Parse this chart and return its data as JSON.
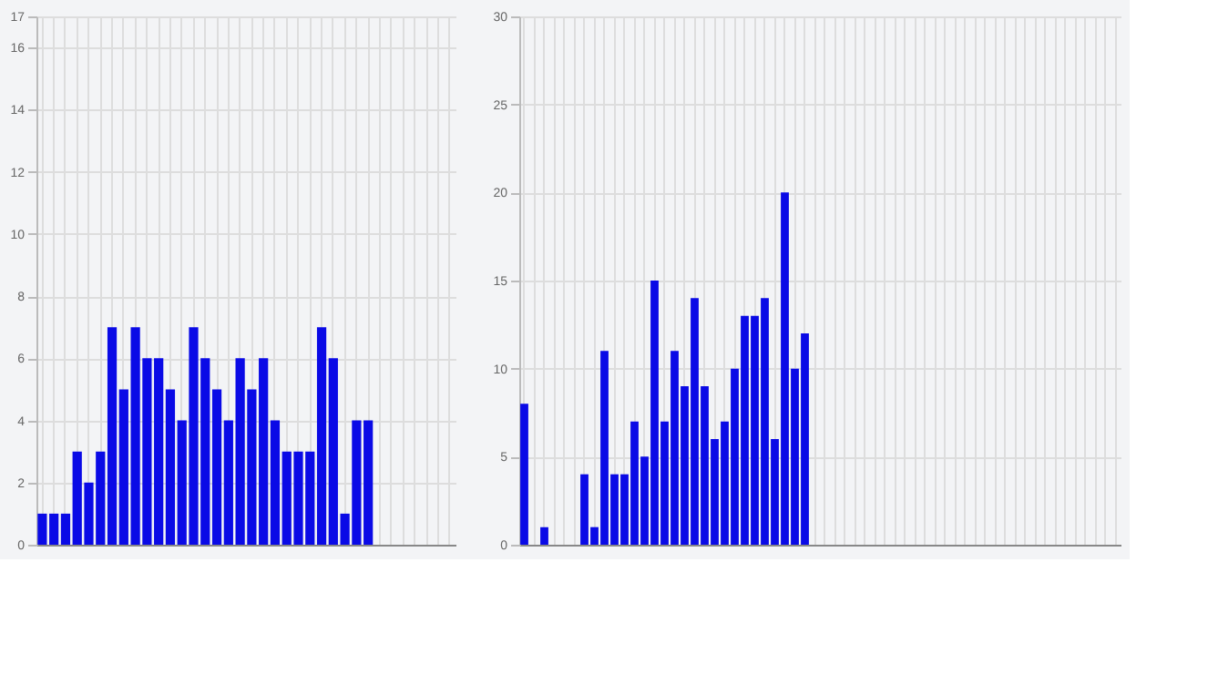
{
  "chart_data": [
    {
      "type": "bar",
      "categories": [
        null,
        null,
        null,
        null,
        null,
        null,
        null,
        null,
        null,
        null,
        null,
        null,
        null,
        null,
        null,
        null,
        null,
        null,
        null,
        null,
        null,
        null,
        null,
        null,
        null,
        null,
        null,
        null,
        null,
        null,
        null,
        null,
        null,
        null,
        null,
        null
      ],
      "series": [
        {
          "color": "#0a0ae6",
          "values": [
            1,
            1,
            1,
            3,
            2,
            3,
            7,
            5,
            7,
            6,
            6,
            5,
            4,
            7,
            6,
            5,
            4,
            6,
            5,
            6,
            4,
            3,
            3,
            3,
            7,
            6,
            1,
            4,
            4,
            null,
            null,
            null,
            null,
            null,
            null,
            null
          ]
        }
      ],
      "ylim": [
        0,
        17
      ],
      "yticks": [
        0,
        2,
        4,
        6,
        8,
        10,
        12,
        14,
        16,
        17
      ],
      "grid": true,
      "tick_labels": "y"
    },
    {
      "type": "bar",
      "categories": [
        null,
        null,
        null,
        null,
        null,
        null,
        null,
        null,
        null,
        null,
        null,
        null,
        null,
        null,
        null,
        null,
        null,
        null,
        null,
        null,
        null,
        null,
        null,
        null,
        null,
        null,
        null,
        null,
        null,
        null,
        null,
        null,
        null,
        null,
        null,
        null,
        null,
        null,
        null,
        null,
        null,
        null,
        null,
        null,
        null,
        null,
        null,
        null,
        null,
        null,
        null,
        null,
        null,
        null,
        null,
        null,
        null,
        null,
        null,
        null
      ],
      "series": [
        {
          "color": "#0a0ae6",
          "values": [
            8,
            0,
            1,
            0,
            0,
            0,
            4,
            1,
            11,
            4,
            4,
            7,
            5,
            15,
            7,
            11,
            9,
            14,
            9,
            6,
            7,
            10,
            13,
            13,
            14,
            6,
            20,
            10,
            12,
            null,
            null,
            null,
            null,
            null,
            null,
            null,
            null,
            null,
            null,
            null,
            null,
            null,
            null,
            null,
            null,
            null,
            null,
            null,
            null,
            null,
            null,
            null,
            null,
            null,
            null,
            null,
            null,
            null,
            null,
            null
          ]
        }
      ],
      "ylim": [
        0,
        30
      ],
      "yticks": [
        0,
        5,
        10,
        15,
        20,
        25,
        30
      ],
      "grid": true,
      "tick_labels": "y"
    }
  ]
}
